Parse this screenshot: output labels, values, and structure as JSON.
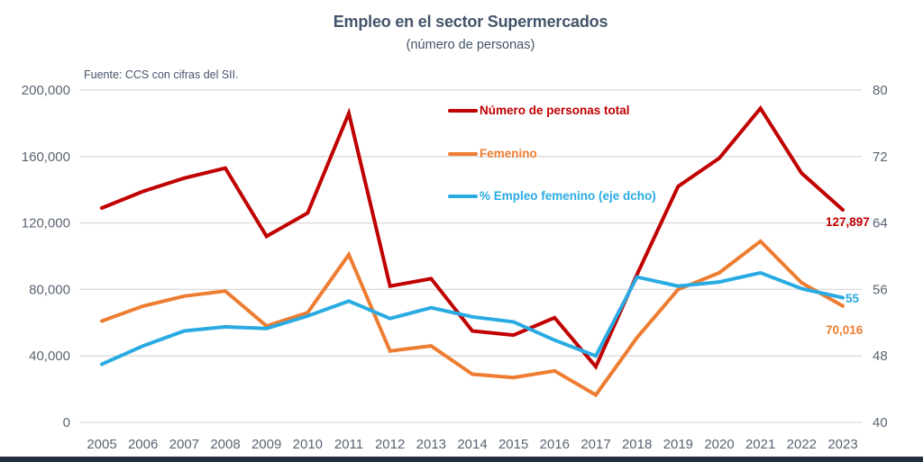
{
  "header": {
    "title": "Empleo en el sector Supermercados",
    "subtitle": "(número de personas)",
    "source": "Fuente: CCS con cifras del SII."
  },
  "chart_data": {
    "type": "line",
    "title": "Empleo en el sector Supermercados",
    "subtitle": "(número de personas)",
    "source": "Fuente: CCS con cifras del SII.",
    "x": [
      2005,
      2006,
      2007,
      2008,
      2009,
      2010,
      2011,
      2012,
      2013,
      2014,
      2015,
      2016,
      2017,
      2018,
      2019,
      2020,
      2021,
      2022,
      2023
    ],
    "series": [
      {
        "name": "Número de personas total",
        "axis": "left",
        "color": "#C00000",
        "values": [
          129000,
          139000,
          147000,
          153000,
          112000,
          126000,
          186000,
          82000,
          86500,
          55000,
          52500,
          63000,
          33500,
          89000,
          142000,
          159000,
          189000,
          150000,
          127897
        ],
        "end_label": "127,897"
      },
      {
        "name": "Femenino",
        "axis": "left",
        "color": "#ED7D31",
        "values": [
          61000,
          70000,
          76000,
          79000,
          58000,
          66000,
          101000,
          43000,
          46000,
          29000,
          27000,
          31000,
          16500,
          51000,
          80000,
          90000,
          109000,
          84000,
          70016
        ],
        "end_label": "70,016"
      },
      {
        "name": "% Empleo femenino (eje dcho)",
        "axis": "right",
        "color": "#29ABE2",
        "values": [
          47.0,
          49.2,
          51.0,
          51.5,
          51.3,
          52.8,
          54.6,
          52.5,
          53.8,
          52.7,
          52.1,
          49.9,
          48.0,
          57.5,
          56.4,
          56.9,
          58.0,
          56.1,
          55.0
        ],
        "end_label": "55"
      }
    ],
    "left_axis": {
      "min": 0,
      "max": 200000,
      "step": 40000,
      "tick_labels": [
        "0",
        "40,000",
        "80,000",
        "120,000",
        "160,000",
        "200,000"
      ]
    },
    "right_axis": {
      "min": 40,
      "max": 80,
      "step": 8,
      "tick_labels": [
        "40",
        "48",
        "56",
        "64",
        "72",
        "80"
      ]
    },
    "grid": true,
    "legend_position": "upper center-right, stacked vertically"
  },
  "colors": {
    "title_text": "#44546A",
    "axis_text": "#5A6472",
    "gridline": "#D9D9D9",
    "background": "#FFFFFF",
    "bottom_bar": "#242E3E"
  }
}
